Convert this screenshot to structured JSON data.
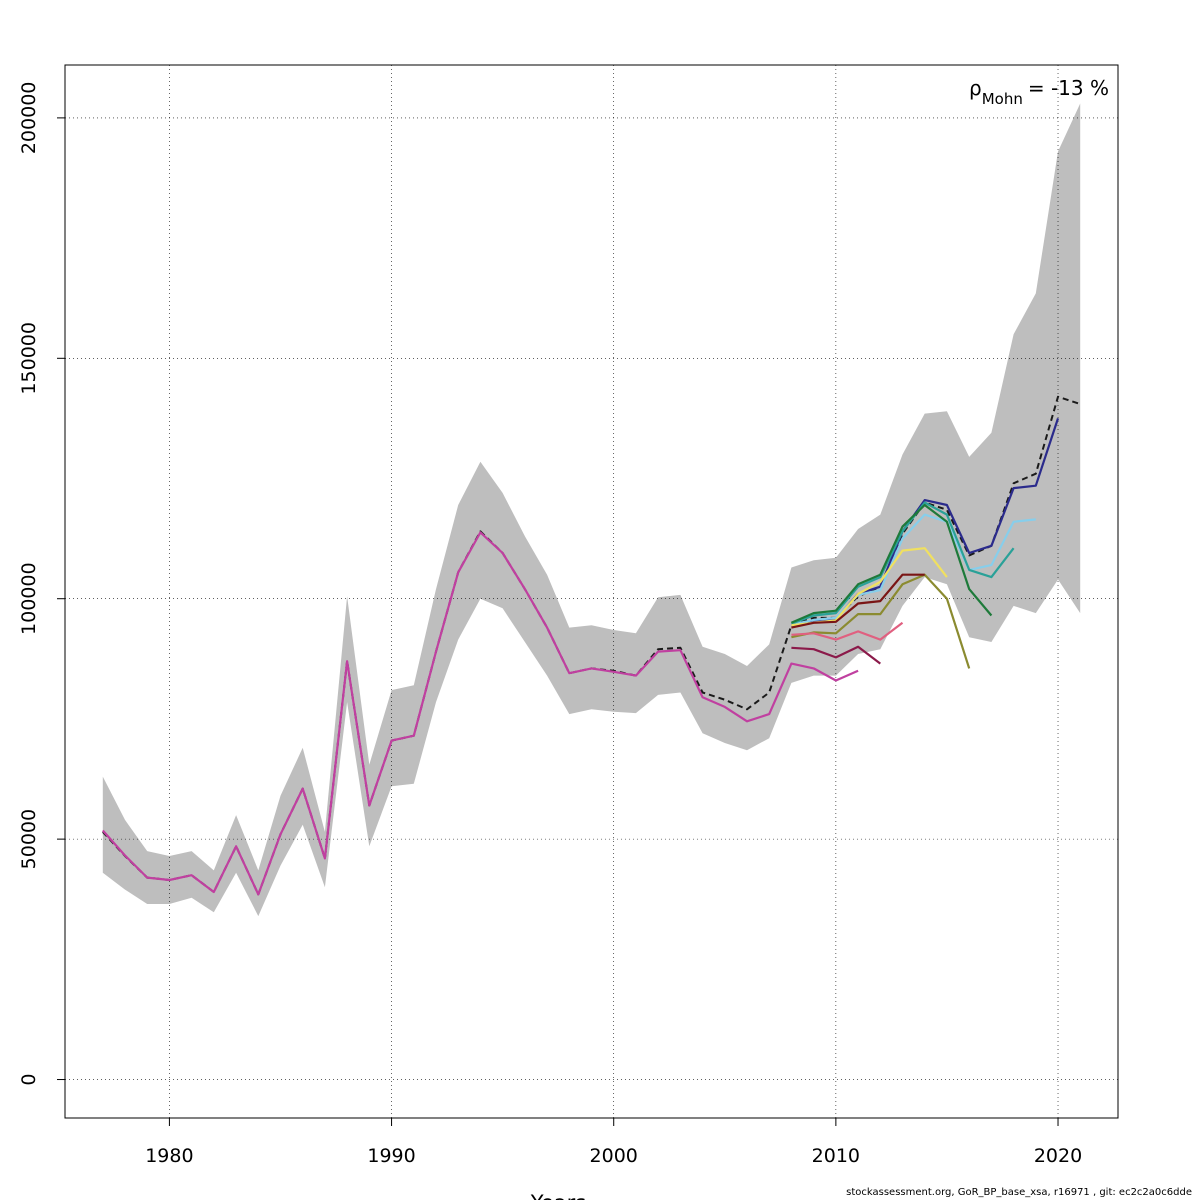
{
  "chart_data": {
    "type": "line",
    "title": "",
    "xlabel": "Years",
    "ylabel": "",
    "xlim": [
      1975.3,
      1972.7
    ],
    "xrange": [
      1975.3,
      2022.7
    ],
    "ylim": [
      -8000,
      211000
    ],
    "x_ticks": [
      1980,
      1990,
      2000,
      2010,
      2020
    ],
    "y_ticks": [
      0,
      50000,
      100000,
      150000,
      200000
    ],
    "x_tick_labels": [
      "1980",
      "1990",
      "2000",
      "2010",
      "2020"
    ],
    "y_tick_labels": [
      "0",
      "50000",
      "100000",
      "150000",
      "200000"
    ],
    "grid": true,
    "annotation": {
      "symbol": "ρ",
      "subscript": "Mohn",
      "value": "= -13 %"
    },
    "band": {
      "color": "#bebebe",
      "years": [
        1977,
        1978,
        1979,
        1980,
        1981,
        1982,
        1983,
        1984,
        1985,
        1986,
        1987,
        1988,
        1989,
        1990,
        1991,
        1992,
        1993,
        1994,
        1995,
        1996,
        1997,
        1998,
        1999,
        2000,
        2001,
        2002,
        2003,
        2004,
        2005,
        2006,
        2007,
        2008,
        2009,
        2010,
        2011,
        2012,
        2013,
        2014,
        2015,
        2016,
        2017,
        2018,
        2019,
        2020,
        2021
      ],
      "upper": [
        63000,
        54000,
        47500,
        46500,
        47500,
        43500,
        55000,
        43500,
        59000,
        69000,
        51500,
        100500,
        65500,
        81000,
        82000,
        102000,
        119500,
        128500,
        122000,
        113000,
        105000,
        94000,
        94500,
        93500,
        92800,
        100300,
        100800,
        90000,
        88500,
        86000,
        90500,
        106500,
        108000,
        108500,
        114500,
        117500,
        130000,
        138500,
        139000,
        129500,
        134500,
        155000,
        163500,
        193000,
        203000
      ],
      "lower": [
        43000,
        39500,
        36500,
        36500,
        37800,
        34800,
        43000,
        34000,
        44500,
        53000,
        40000,
        78500,
        48500,
        61000,
        61500,
        78500,
        91500,
        100000,
        98000,
        91000,
        84000,
        76000,
        77000,
        76500,
        76200,
        80000,
        80500,
        72000,
        70000,
        68500,
        71000,
        82500,
        84000,
        84000,
        88500,
        89500,
        98500,
        104500,
        103000,
        92000,
        91000,
        98500,
        97000,
        104000,
        97000
      ]
    },
    "series": [
      {
        "color": "#1a1a1a",
        "dashed": true,
        "years": [
          1977,
          1978,
          1979,
          1980,
          1981,
          1982,
          1983,
          1984,
          1985,
          1986,
          1987,
          1988,
          1989,
          1990,
          1991,
          1992,
          1993,
          1994,
          1995,
          1996,
          1997,
          1998,
          1999,
          2000,
          2001,
          2002,
          2003,
          2004,
          2005,
          2006,
          2007,
          2008,
          2009,
          2010,
          2011,
          2012,
          2013,
          2014,
          2015,
          2016,
          2017,
          2018,
          2019,
          2020,
          2021
        ],
        "values": [
          51500,
          46500,
          42000,
          41500,
          42500,
          39000,
          48500,
          38500,
          51000,
          60500,
          46000,
          87000,
          57000,
          70500,
          71500,
          89000,
          105500,
          114000,
          109500,
          102000,
          94000,
          84500,
          85500,
          85000,
          84000,
          89500,
          89800,
          80500,
          79000,
          77000,
          80500,
          94500,
          96000,
          96000,
          100500,
          102500,
          113500,
          120000,
          118500,
          109000,
          111000,
          124000,
          126000,
          142000,
          140500
        ]
      },
      {
        "color": "#2b2b8c",
        "years": [
          2008,
          2009,
          2010,
          2011,
          2012,
          2013,
          2014,
          2015,
          2016,
          2017,
          2018,
          2019,
          2020
        ],
        "values": [
          94500,
          95500,
          95800,
          101000,
          102500,
          114000,
          120500,
          119500,
          109500,
          111000,
          123000,
          123500,
          137500
        ]
      },
      {
        "color": "#87ceeb",
        "years": [
          2008,
          2009,
          2010,
          2011,
          2012,
          2013,
          2014,
          2015,
          2016,
          2017,
          2018,
          2019
        ],
        "values": [
          94600,
          95600,
          96000,
          100800,
          101800,
          112500,
          117500,
          116000,
          106000,
          107000,
          116000,
          116500
        ]
      },
      {
        "color": "#2aa198",
        "years": [
          2008,
          2009,
          2010,
          2011,
          2012,
          2013,
          2014,
          2015,
          2016,
          2017,
          2018
        ],
        "values": [
          94800,
          96500,
          97000,
          102500,
          104500,
          114000,
          120000,
          117500,
          106000,
          104500,
          110500
        ]
      },
      {
        "color": "#1e7a3a",
        "years": [
          2008,
          2009,
          2010,
          2011,
          2012,
          2013,
          2014,
          2015,
          2016,
          2017
        ],
        "values": [
          95000,
          97000,
          97500,
          103000,
          105000,
          115000,
          119500,
          116000,
          102000,
          96500
        ]
      },
      {
        "color": "#f0e060",
        "years": [
          2008,
          2009,
          2010,
          2011,
          2012,
          2013,
          2014,
          2015
        ],
        "values": [
          94500,
          95000,
          95500,
          101000,
          103500,
          110000,
          110500,
          104500
        ]
      },
      {
        "color": "#8b8b30",
        "years": [
          2008,
          2009,
          2010,
          2011,
          2012,
          2013,
          2014,
          2015,
          2016
        ],
        "values": [
          92000,
          93000,
          92800,
          96800,
          96800,
          103000,
          105000,
          100000,
          85500
        ]
      },
      {
        "color": "#7a1515",
        "years": [
          2008,
          2009,
          2010,
          2011,
          2012,
          2013,
          2014
        ],
        "values": [
          94000,
          95000,
          95200,
          99000,
          99500,
          105000,
          105000
        ]
      },
      {
        "color": "#e06080",
        "years": [
          2008,
          2009,
          2010,
          2011,
          2012,
          2013
        ],
        "values": [
          92500,
          92800,
          91500,
          93200,
          91500,
          95000
        ]
      },
      {
        "color": "#8b1a4a",
        "years": [
          2008,
          2009,
          2010,
          2011,
          2012
        ],
        "values": [
          89800,
          89500,
          87800,
          90000,
          86500
        ]
      },
      {
        "color": "#c040a0",
        "years": [
          1977,
          1978,
          1979,
          1980,
          1981,
          1982,
          1983,
          1984,
          1985,
          1986,
          1987,
          1988,
          1989,
          1990,
          1991,
          1992,
          1993,
          1994,
          1995,
          1996,
          1997,
          1998,
          1999,
          2000,
          2001,
          2002,
          2003,
          2004,
          2005,
          2006,
          2007,
          2008,
          2009,
          2010,
          2011
        ],
        "values": [
          51800,
          46600,
          42000,
          41500,
          42500,
          39000,
          48500,
          38500,
          51000,
          60500,
          46000,
          87000,
          57000,
          70500,
          71500,
          89000,
          105500,
          113800,
          109500,
          102000,
          94000,
          84500,
          85500,
          84800,
          84000,
          89000,
          89300,
          79500,
          77500,
          74500,
          76000,
          86500,
          85500,
          83000,
          85000
        ]
      }
    ]
  },
  "footer": "stockassessment.org, GoR_BP_base_xsa, r16971 , git: ec2c2a0c6dde"
}
